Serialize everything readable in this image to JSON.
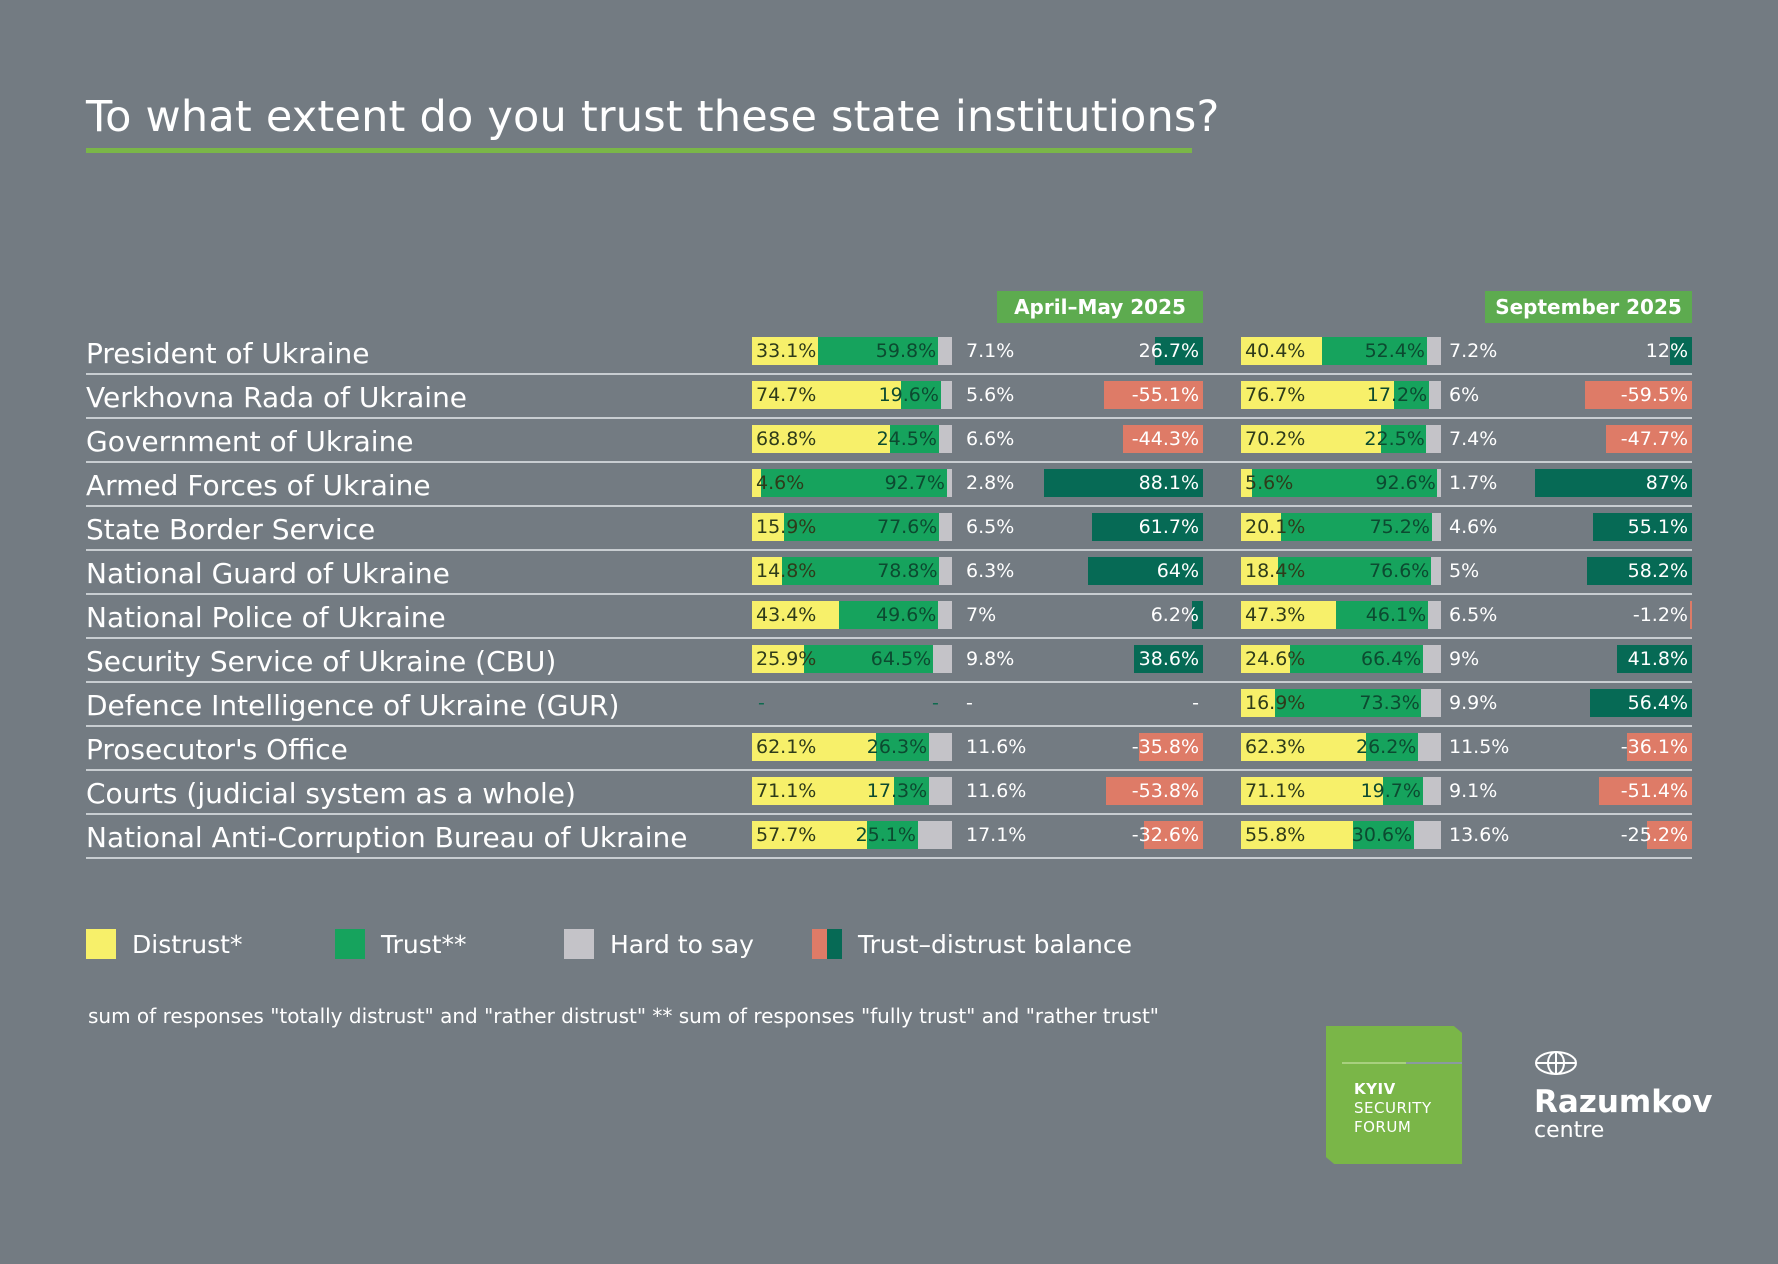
{
  "title": "To what extent do you trust these state institutions?",
  "periods": [
    "April–May 2025",
    "September 2025"
  ],
  "colors": {
    "background": "#737b82",
    "distrust": "#f7f06a",
    "trust": "#16a35d",
    "hard_to_say": "#c4c3c8",
    "balance_negative": "#de7b67",
    "balance_positive": "#066a55",
    "accent": "#7ab648"
  },
  "legend": {
    "distrust": "Distrust*",
    "trust": "Trust**",
    "hard_to_say": "Hard to say",
    "balance": "Trust–distrust balance"
  },
  "footnote": "sum of responses \"totally distrust\" and \"rather distrust\"  ** sum of responses \"fully trust\" and \"rather trust\"",
  "logos": {
    "ksf_line1": "KYIV",
    "ksf_line2": "SECURITY",
    "ksf_line3": "FORUM",
    "razumkov_name": "Razumkov",
    "razumkov_sub": "centre"
  },
  "chart_data": {
    "type": "bar",
    "title": "To what extent do you trust these state institutions?",
    "series_names": [
      "Distrust*",
      "Trust**",
      "Hard to say",
      "Trust–distrust balance"
    ],
    "periods": [
      "April–May 2025",
      "September 2025"
    ],
    "rows": [
      {
        "label": "President of Ukraine",
        "values": [
          {
            "distrust": 33.1,
            "trust": 59.8,
            "hard": 7.1,
            "balance": 26.7,
            "labels": [
              "33.1%",
              "59.8%",
              "7.1%",
              "26.7%"
            ]
          },
          {
            "distrust": 40.4,
            "trust": 52.4,
            "hard": 7.2,
            "balance": 12,
            "labels": [
              "40.4%",
              "52.4%",
              "7.2%",
              "12%"
            ]
          }
        ]
      },
      {
        "label": "Verkhovna Rada of Ukraine",
        "values": [
          {
            "distrust": 74.7,
            "trust": 19.6,
            "hard": 5.6,
            "balance": -55.1,
            "labels": [
              "74.7%",
              "19.6%",
              "5.6%",
              "-55.1%"
            ]
          },
          {
            "distrust": 76.7,
            "trust": 17.2,
            "hard": 6,
            "balance": -59.5,
            "labels": [
              "76.7%",
              "17.2%",
              "6%",
              "-59.5%"
            ]
          }
        ]
      },
      {
        "label": "Government of Ukraine",
        "values": [
          {
            "distrust": 68.8,
            "trust": 24.5,
            "hard": 6.6,
            "balance": -44.3,
            "labels": [
              "68.8%",
              "24.5%",
              "6.6%",
              "-44.3%"
            ]
          },
          {
            "distrust": 70.2,
            "trust": 22.5,
            "hard": 7.4,
            "balance": -47.7,
            "labels": [
              "70.2%",
              "22.5%",
              "7.4%",
              "-47.7%"
            ]
          }
        ]
      },
      {
        "label": "Armed Forces of Ukraine",
        "values": [
          {
            "distrust": 4.6,
            "trust": 92.7,
            "hard": 2.8,
            "balance": 88.1,
            "labels": [
              "4.6%",
              "92.7%",
              "2.8%",
              "88.1%"
            ]
          },
          {
            "distrust": 5.6,
            "trust": 92.6,
            "hard": 1.7,
            "balance": 87,
            "labels": [
              "5.6%",
              "92.6%",
              "1.7%",
              "87%"
            ]
          }
        ]
      },
      {
        "label": "State Border Service",
        "values": [
          {
            "distrust": 15.9,
            "trust": 77.6,
            "hard": 6.5,
            "balance": 61.7,
            "labels": [
              "15.9%",
              "77.6%",
              "6.5%",
              "61.7%"
            ]
          },
          {
            "distrust": 20.1,
            "trust": 75.2,
            "hard": 4.6,
            "balance": 55.1,
            "labels": [
              "20.1%",
              "75.2%",
              "4.6%",
              "55.1%"
            ]
          }
        ]
      },
      {
        "label": "National Guard of Ukraine",
        "values": [
          {
            "distrust": 14.8,
            "trust": 78.8,
            "hard": 6.3,
            "balance": 64,
            "labels": [
              "14.8%",
              "78.8%",
              "6.3%",
              "64%"
            ]
          },
          {
            "distrust": 18.4,
            "trust": 76.6,
            "hard": 5,
            "balance": 58.2,
            "labels": [
              "18.4%",
              "76.6%",
              "5%",
              "58.2%"
            ]
          }
        ]
      },
      {
        "label": "National Police of Ukraine",
        "values": [
          {
            "distrust": 43.4,
            "trust": 49.6,
            "hard": 7,
            "balance": 6.2,
            "labels": [
              "43.4%",
              "49.6%",
              "7%",
              "6.2%"
            ]
          },
          {
            "distrust": 47.3,
            "trust": 46.1,
            "hard": 6.5,
            "balance": -1.2,
            "labels": [
              "47.3%",
              "46.1%",
              "6.5%",
              "-1.2%"
            ]
          }
        ]
      },
      {
        "label": "Security Service of Ukraine (CBU)",
        "values": [
          {
            "distrust": 25.9,
            "trust": 64.5,
            "hard": 9.8,
            "balance": 38.6,
            "labels": [
              "25.9%",
              "64.5%",
              "9.8%",
              "38.6%"
            ]
          },
          {
            "distrust": 24.6,
            "trust": 66.4,
            "hard": 9,
            "balance": 41.8,
            "labels": [
              "24.6%",
              "66.4%",
              "9%",
              "41.8%"
            ]
          }
        ]
      },
      {
        "label": "Defence Intelligence of Ukraine (GUR)",
        "values": [
          {
            "distrust": null,
            "trust": null,
            "hard": null,
            "balance": null,
            "labels": [
              "-",
              "-",
              "-",
              "-"
            ]
          },
          {
            "distrust": 16.9,
            "trust": 73.3,
            "hard": 9.9,
            "balance": 56.4,
            "labels": [
              "16.9%",
              "73.3%",
              "9.9%",
              "56.4%"
            ]
          }
        ]
      },
      {
        "label": "Prosecutor's Office",
        "values": [
          {
            "distrust": 62.1,
            "trust": 26.3,
            "hard": 11.6,
            "balance": -35.8,
            "labels": [
              "62.1%",
              "26.3%",
              "11.6%",
              "-35.8%"
            ]
          },
          {
            "distrust": 62.3,
            "trust": 26.2,
            "hard": 11.5,
            "balance": -36.1,
            "labels": [
              "62.3%",
              "26.2%",
              "11.5%",
              "-36.1%"
            ]
          }
        ]
      },
      {
        "label": "Courts (judicial system as a whole)",
        "values": [
          {
            "distrust": 71.1,
            "trust": 17.3,
            "hard": 11.6,
            "balance": -53.8,
            "labels": [
              "71.1%",
              "17.3%",
              "11.6%",
              "-53.8%"
            ]
          },
          {
            "distrust": 71.1,
            "trust": 19.7,
            "hard": 9.1,
            "balance": -51.4,
            "labels": [
              "71.1%",
              "19.7%",
              "9.1%",
              "-51.4%"
            ]
          }
        ]
      },
      {
        "label": "National Anti-Corruption Bureau of Ukraine",
        "values": [
          {
            "distrust": 57.7,
            "trust": 25.1,
            "hard": 17.1,
            "balance": -32.6,
            "labels": [
              "57.7%",
              "25.1%",
              "17.1%",
              "-32.6%"
            ]
          },
          {
            "distrust": 55.8,
            "trust": 30.6,
            "hard": 13.6,
            "balance": -25.2,
            "labels": [
              "55.8%",
              "30.6%",
              "13.6%",
              "-25.2%"
            ]
          }
        ]
      }
    ]
  }
}
